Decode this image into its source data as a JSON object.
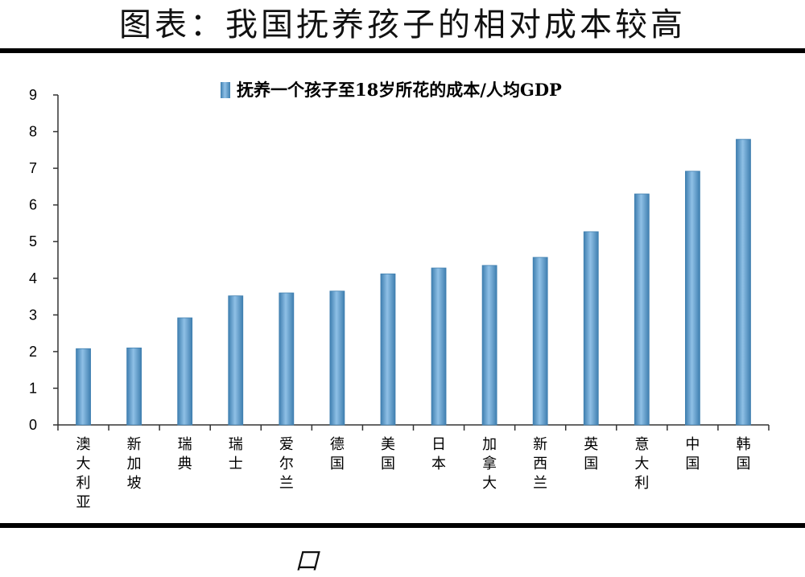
{
  "header": {
    "title": "图表：我国抚养孩子的相对成本较高"
  },
  "footer": {
    "mark": "口"
  },
  "colors": {
    "bar": "#5b9bd5",
    "bar_dark": "#3f7fb0",
    "axis": "#333333",
    "text": "#000000"
  },
  "chart_data": {
    "type": "bar",
    "title": "",
    "xlabel": "",
    "ylabel": "",
    "ylim": [
      0,
      9
    ],
    "yticks": [
      0,
      1,
      2,
      3,
      4,
      5,
      6,
      7,
      8,
      9
    ],
    "grid": false,
    "legend_position": "top",
    "categories": [
      "澳大利亚",
      "新加坡",
      "瑞典",
      "瑞士",
      "爱尔兰",
      "德国",
      "美国",
      "日本",
      "加拿大",
      "新西兰",
      "英国",
      "意大利",
      "中国",
      "韩国"
    ],
    "series": [
      {
        "name": "抚养一个孩子至18岁所花的成本/人均GDP",
        "values": [
          2.08,
          2.1,
          2.92,
          3.52,
          3.6,
          3.65,
          4.12,
          4.28,
          4.35,
          4.57,
          5.27,
          6.3,
          6.92,
          7.79
        ]
      }
    ]
  }
}
